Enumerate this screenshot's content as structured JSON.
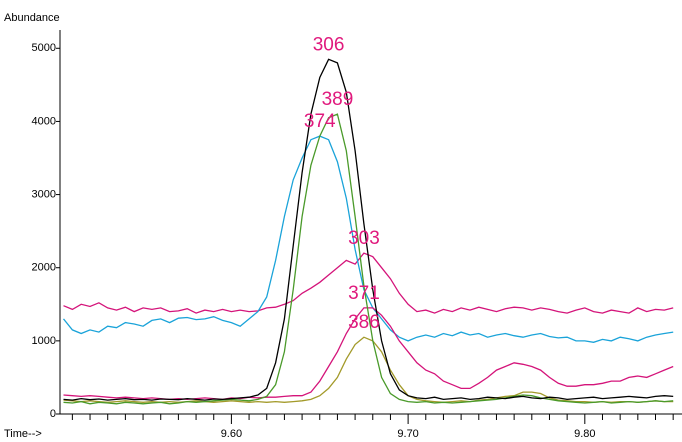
{
  "chart_data": {
    "type": "line",
    "y_label": "Abundance",
    "x_label": "Time-->",
    "xlim": [
      9.503,
      9.855
    ],
    "ylim": [
      0,
      5250
    ],
    "xticks": [
      {
        "value": 9.6,
        "label": "9.60"
      },
      {
        "value": 9.7,
        "label": "9.70"
      },
      {
        "value": 9.8,
        "label": "9.80"
      }
    ],
    "xminor": [
      9.51,
      9.52,
      9.53,
      9.54,
      9.55,
      9.56,
      9.57,
      9.58,
      9.59,
      9.61,
      9.62,
      9.63,
      9.64,
      9.65,
      9.66,
      9.67,
      9.68,
      9.69,
      9.71,
      9.72,
      9.73,
      9.74,
      9.75,
      9.76,
      9.77,
      9.78,
      9.79,
      9.81,
      9.82,
      9.83,
      9.84,
      9.85
    ],
    "yticks": [
      0,
      1000,
      2000,
      3000,
      4000,
      5000
    ],
    "annotation_color": "#e0197d",
    "x": [
      9.505,
      9.51,
      9.515,
      9.52,
      9.525,
      9.53,
      9.535,
      9.54,
      9.545,
      9.55,
      9.555,
      9.56,
      9.565,
      9.57,
      9.575,
      9.58,
      9.585,
      9.59,
      9.595,
      9.6,
      9.605,
      9.61,
      9.615,
      9.62,
      9.625,
      9.63,
      9.635,
      9.64,
      9.645,
      9.65,
      9.655,
      9.66,
      9.665,
      9.67,
      9.675,
      9.68,
      9.685,
      9.69,
      9.695,
      9.7,
      9.705,
      9.71,
      9.715,
      9.72,
      9.725,
      9.73,
      9.735,
      9.74,
      9.745,
      9.75,
      9.755,
      9.76,
      9.765,
      9.77,
      9.775,
      9.78,
      9.785,
      9.79,
      9.795,
      9.8,
      9.805,
      9.81,
      9.815,
      9.82,
      9.825,
      9.83,
      9.835,
      9.84,
      9.845,
      9.85
    ],
    "series": [
      {
        "name": "303",
        "color": "#d4147a",
        "values": [
          1480,
          1430,
          1500,
          1470,
          1520,
          1450,
          1420,
          1460,
          1400,
          1450,
          1430,
          1450,
          1400,
          1410,
          1440,
          1380,
          1420,
          1400,
          1430,
          1400,
          1420,
          1400,
          1410,
          1450,
          1460,
          1500,
          1550,
          1650,
          1720,
          1800,
          1900,
          2000,
          2100,
          2050,
          2200,
          2150,
          2000,
          1850,
          1650,
          1500,
          1400,
          1420,
          1380,
          1430,
          1400,
          1450,
          1420,
          1460,
          1430,
          1400,
          1440,
          1460,
          1450,
          1420,
          1450,
          1430,
          1400,
          1380,
          1420,
          1450,
          1400,
          1380,
          1420,
          1400,
          1380,
          1450,
          1400,
          1430,
          1420,
          1450
        ]
      },
      {
        "name": "374",
        "color": "#1aa3d9",
        "values": [
          1300,
          1150,
          1100,
          1150,
          1120,
          1200,
          1180,
          1250,
          1230,
          1200,
          1280,
          1300,
          1250,
          1310,
          1320,
          1290,
          1300,
          1330,
          1280,
          1250,
          1200,
          1300,
          1400,
          1600,
          2100,
          2700,
          3200,
          3500,
          3750,
          3800,
          3750,
          3450,
          2950,
          2250,
          1700,
          1450,
          1300,
          1150,
          1050,
          1000,
          1050,
          1080,
          1050,
          1100,
          1070,
          1120,
          1080,
          1100,
          1050,
          1080,
          1100,
          1070,
          1050,
          1080,
          1100,
          1060,
          1040,
          1050,
          1000,
          1000,
          980,
          1020,
          1000,
          1050,
          1030,
          1000,
          1050,
          1080,
          1100,
          1120
        ]
      },
      {
        "name": "371",
        "color": "#d4147a",
        "values": [
          260,
          250,
          240,
          250,
          240,
          230,
          220,
          230,
          220,
          210,
          220,
          210,
          200,
          210,
          200,
          210,
          220,
          210,
          200,
          220,
          210,
          230,
          220,
          230,
          230,
          240,
          250,
          250,
          300,
          450,
          650,
          850,
          1100,
          1300,
          1450,
          1450,
          1350,
          1200,
          1000,
          850,
          700,
          600,
          550,
          450,
          400,
          350,
          350,
          420,
          500,
          600,
          650,
          700,
          680,
          650,
          600,
          500,
          420,
          380,
          380,
          400,
          400,
          420,
          450,
          450,
          500,
          520,
          500,
          550,
          600,
          650
        ]
      },
      {
        "name": "386",
        "color": "#a39a2a",
        "values": [
          190,
          180,
          170,
          180,
          170,
          160,
          170,
          180,
          170,
          160,
          170,
          160,
          170,
          160,
          170,
          180,
          170,
          160,
          170,
          180,
          170,
          160,
          170,
          160,
          170,
          160,
          170,
          180,
          200,
          250,
          350,
          500,
          750,
          950,
          1050,
          1000,
          850,
          600,
          400,
          250,
          200,
          180,
          170,
          160,
          170,
          180,
          170,
          190,
          200,
          220,
          240,
          250,
          300,
          300,
          280,
          220,
          190,
          180,
          170,
          170,
          160,
          170,
          160,
          170,
          170,
          160,
          170,
          180,
          170,
          170
        ]
      },
      {
        "name": "389",
        "color": "#4a9a2a",
        "values": [
          160,
          150,
          170,
          140,
          160,
          150,
          140,
          160,
          150,
          140,
          150,
          160,
          140,
          150,
          170,
          160,
          170,
          180,
          190,
          200,
          190,
          180,
          200,
          240,
          400,
          850,
          1700,
          2700,
          3400,
          3800,
          4050,
          4100,
          3600,
          2700,
          1750,
          1000,
          500,
          280,
          200,
          170,
          160,
          170,
          150,
          160,
          150,
          160,
          170,
          180,
          190,
          200,
          220,
          240,
          260,
          250,
          220,
          200,
          180,
          170,
          160,
          150,
          160,
          170,
          150,
          160,
          170,
          160,
          170,
          180,
          170,
          180
        ]
      },
      {
        "name": "306",
        "color": "#000000",
        "values": [
          200,
          190,
          210,
          195,
          205,
          190,
          200,
          210,
          195,
          200,
          190,
          205,
          200,
          195,
          210,
          200,
          190,
          205,
          200,
          210,
          220,
          230,
          260,
          350,
          700,
          1300,
          2300,
          3300,
          4100,
          4600,
          4850,
          4800,
          4400,
          3600,
          2600,
          1700,
          1000,
          550,
          330,
          250,
          220,
          210,
          230,
          200,
          210,
          220,
          200,
          210,
          230,
          220,
          210,
          230,
          240,
          220,
          210,
          230,
          220,
          200,
          210,
          220,
          230,
          210,
          220,
          230,
          240,
          230,
          220,
          240,
          250,
          240
        ]
      }
    ]
  }
}
